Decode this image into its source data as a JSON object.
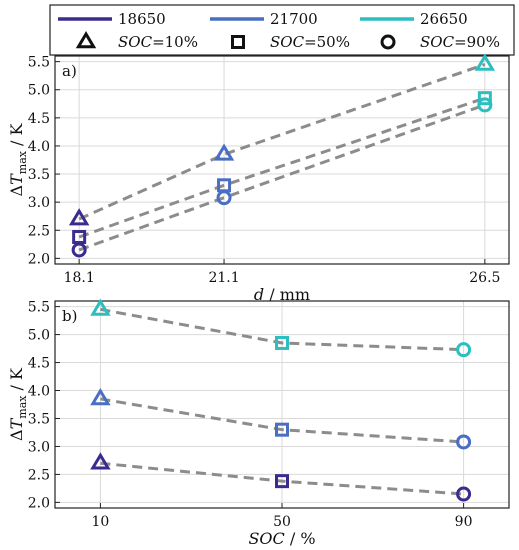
{
  "legend": {
    "series": [
      {
        "name": "18650",
        "color": "#3d2a8f"
      },
      {
        "name": "21700",
        "color": "#4a6ec4"
      },
      {
        "name": "26650",
        "color": "#2bbfbf"
      }
    ],
    "markers": [
      {
        "symbol": "triangle",
        "soc_label": "SOC",
        "value_label": "=10%"
      },
      {
        "symbol": "square",
        "soc_label": "SOC",
        "value_label": "=50%"
      },
      {
        "symbol": "circle",
        "soc_label": "SOC",
        "value_label": "=90%"
      }
    ]
  },
  "chart_data": [
    {
      "panel_label": "a)",
      "type": "scatter",
      "xlabel": "d / mm",
      "ylabel": "ΔT_max / K",
      "xlim": [
        17.6,
        27.0
      ],
      "ylim": [
        1.9,
        5.6
      ],
      "x_ticks": [
        18.1,
        21.1,
        26.5
      ],
      "x_tick_labels": [
        "18.1",
        "21.1",
        "26.5"
      ],
      "y_ticks": [
        2.0,
        2.5,
        3.0,
        3.5,
        4.0,
        4.5,
        5.0,
        5.5
      ],
      "y_tick_labels": [
        "2.0",
        "2.5",
        "3.0",
        "3.5",
        "4.0",
        "4.5",
        "5.0",
        "5.5"
      ],
      "grid": true,
      "series": [
        {
          "soc": "10%",
          "marker": "triangle",
          "x": [
            18.1,
            21.1,
            26.5
          ],
          "y": [
            2.7,
            3.85,
            5.45
          ],
          "colors": [
            "#3d2a8f",
            "#4a6ec4",
            "#2bbfbf"
          ]
        },
        {
          "soc": "50%",
          "marker": "square",
          "x": [
            18.1,
            21.1,
            26.5
          ],
          "y": [
            2.38,
            3.3,
            4.85
          ],
          "colors": [
            "#3d2a8f",
            "#4a6ec4",
            "#2bbfbf"
          ]
        },
        {
          "soc": "90%",
          "marker": "circle",
          "x": [
            18.1,
            21.1,
            26.5
          ],
          "y": [
            2.15,
            3.08,
            4.73
          ],
          "colors": [
            "#3d2a8f",
            "#4a6ec4",
            "#2bbfbf"
          ]
        }
      ]
    },
    {
      "panel_label": "b)",
      "type": "scatter",
      "xlabel": "SOC / %",
      "ylabel": "ΔT_max / K",
      "xlim": [
        0,
        100
      ],
      "ylim": [
        1.9,
        5.6
      ],
      "x_ticks": [
        10,
        50,
        90
      ],
      "x_tick_labels": [
        "10",
        "50",
        "90"
      ],
      "y_ticks": [
        2.0,
        2.5,
        3.0,
        3.5,
        4.0,
        4.5,
        5.0,
        5.5
      ],
      "y_tick_labels": [
        "2.0",
        "2.5",
        "3.0",
        "3.5",
        "4.0",
        "4.5",
        "5.0",
        "5.5"
      ],
      "grid": true,
      "series": [
        {
          "cell": "26650",
          "color": "#2bbfbf",
          "x": [
            10,
            50,
            90
          ],
          "y": [
            5.45,
            4.85,
            4.73
          ],
          "markers": [
            "triangle",
            "square",
            "circle"
          ]
        },
        {
          "cell": "21700",
          "color": "#4a6ec4",
          "x": [
            10,
            50,
            90
          ],
          "y": [
            3.85,
            3.3,
            3.08
          ],
          "markers": [
            "triangle",
            "square",
            "circle"
          ]
        },
        {
          "cell": "18650",
          "color": "#3d2a8f",
          "x": [
            10,
            50,
            90
          ],
          "y": [
            2.7,
            2.38,
            2.15
          ],
          "markers": [
            "triangle",
            "square",
            "circle"
          ]
        }
      ]
    }
  ],
  "style": {
    "dash_color": "#8c8c8c",
    "grid_color": "#d9d9d9",
    "frame_color": "#222222"
  }
}
